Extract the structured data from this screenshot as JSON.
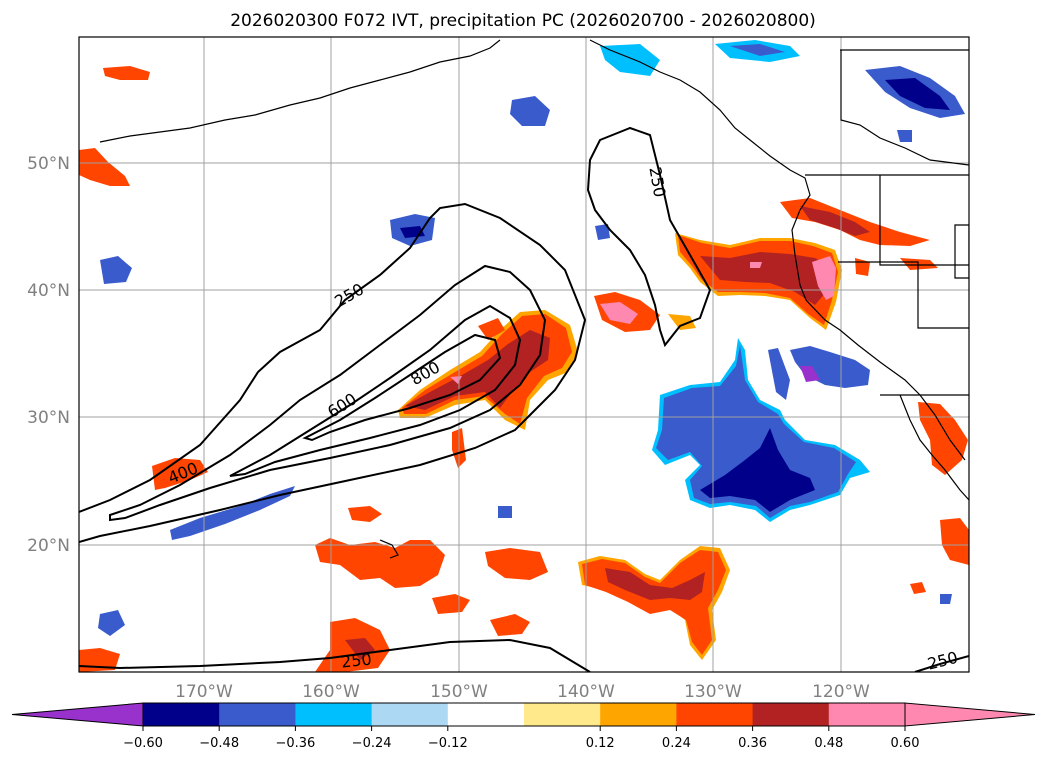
{
  "title": "2026020300 F072 IVT, precipitation PC (2026020700 - 2026020800)",
  "map": {
    "lat_labels": [
      "50°N",
      "40°N",
      "30°N",
      "20°N"
    ],
    "lon_labels": [
      "170°W",
      "160°W",
      "150°W",
      "140°W",
      "130°W",
      "120°W"
    ],
    "grid": true,
    "contour_labels": [
      "250",
      "250",
      "400",
      "600",
      "800",
      "250",
      "250"
    ]
  },
  "colorbar": {
    "ticks": [
      "−0.60",
      "−0.48",
      "−0.36",
      "−0.24",
      "−0.12",
      "0.12",
      "0.24",
      "0.36",
      "0.48",
      "0.60"
    ],
    "colors": {
      "under": "#9932cc",
      "bins": [
        "#00008b",
        "#3a5bcc",
        "#00bfff",
        "#add8f4",
        "#ffffff",
        "#ffe98a",
        "#ffa500",
        "#ff4500",
        "#b22222",
        "#ff88b0"
      ],
      "over": "#ff88b0"
    }
  },
  "colors": {
    "neg_strong": "#00008b",
    "neg_med": "#3a5bcc",
    "neg_light": "#00bfff",
    "neg_pale": "#add8f4",
    "pos_yellow": "#ffe98a",
    "pos_orange": "#ffa500",
    "pos_red": "#ff4500",
    "pos_dark": "#b22222",
    "pos_pink": "#ff88b0",
    "purple": "#9932cc"
  }
}
